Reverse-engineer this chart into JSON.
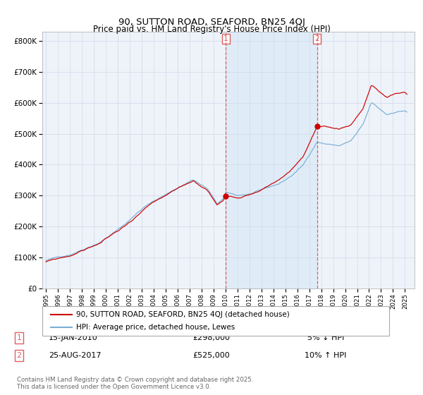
{
  "title": "90, SUTTON ROAD, SEAFORD, BN25 4QJ",
  "subtitle": "Price paid vs. HM Land Registry's House Price Index (HPI)",
  "legend_label1": "90, SUTTON ROAD, SEAFORD, BN25 4QJ (detached house)",
  "legend_label2": "HPI: Average price, detached house, Lewes",
  "annotation1_label": "1",
  "annotation1_date": "15-JAN-2010",
  "annotation1_price": "£298,000",
  "annotation1_hpi": "5% ↓ HPI",
  "annotation1_year": 2010.04,
  "annotation1_value": 298000,
  "annotation2_label": "2",
  "annotation2_date": "25-AUG-2017",
  "annotation2_price": "£525,000",
  "annotation2_hpi": "10% ↑ HPI",
  "annotation2_year": 2017.65,
  "annotation2_value": 525000,
  "footnote": "Contains HM Land Registry data © Crown copyright and database right 2025.\nThis data is licensed under the Open Government Licence v3.0.",
  "ylim": [
    0,
    830000
  ],
  "xlim_start": 1994.7,
  "xlim_end": 2025.8,
  "line_color_property": "#cc0000",
  "line_color_hpi": "#7aafd4",
  "fill_color": "#d6e8f5",
  "vline_color": "#e06060",
  "background_color": "#eef3fa",
  "plot_bg_color": "#ffffff",
  "grid_color": "#d0d8e8"
}
